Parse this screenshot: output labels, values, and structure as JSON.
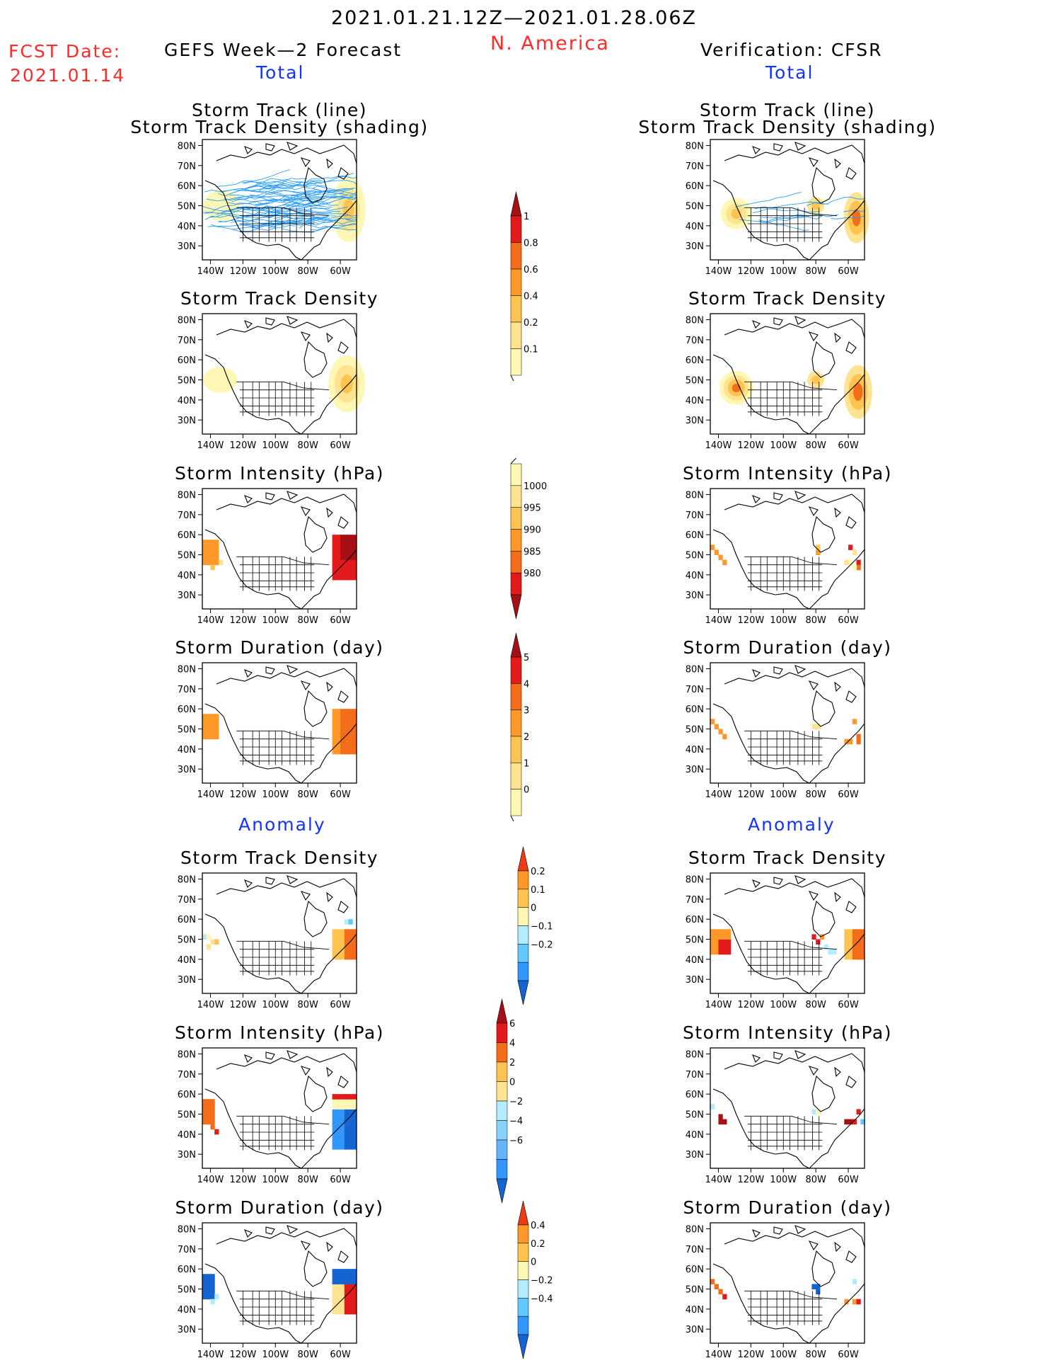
{
  "header": {
    "date_range": "2021.01.21.12Z—2021.01.28.06Z",
    "region": "N. America",
    "fcst_label": "FCST Date:",
    "fcst_date": "2021.01.14",
    "left_title": "GEFS Week—2 Forecast",
    "right_title": "Verification: CFSR",
    "left_section": "Total",
    "right_section": "Total",
    "left_anomaly": "Anomaly",
    "right_anomaly": "Anomaly"
  },
  "colors": {
    "header_red": "#ff2a2a",
    "section_blue": "#1432ff",
    "track_line": "#2a9df4",
    "warm": [
      "#fff7b4",
      "#fee391",
      "#fec44f",
      "#fe9929",
      "#f46d1a",
      "#e31a1c",
      "#a50f15"
    ],
    "cool": [
      "#b3ecff",
      "#64c8ff",
      "#3296fa",
      "#1464d2"
    ]
  },
  "chart_data": [
    {
      "type": "heatmap",
      "panel": "forecast",
      "title": "Storm Track (line)",
      "subtitle": "Storm Track Density (shading)",
      "xlabel": "",
      "ylabel": "",
      "x_ticks": [
        "140W",
        "120W",
        "100W",
        "80W",
        "60W"
      ],
      "y_ticks": [
        "80N",
        "70N",
        "60N",
        "50N",
        "40N",
        "30N"
      ],
      "overlay": "storm track lines (many, blue)",
      "colorbar": "total_density"
    },
    {
      "type": "heatmap",
      "panel": "verification",
      "title": "Storm Track (line)",
      "subtitle": "Storm Track Density (shading)",
      "xlabel": "",
      "ylabel": "",
      "x_ticks": [
        "140W",
        "120W",
        "100W",
        "80W",
        "60W"
      ],
      "y_ticks": [
        "80N",
        "70N",
        "60N",
        "50N",
        "40N",
        "30N"
      ],
      "overlay": "storm track lines (few, blue)",
      "colorbar": "total_density"
    },
    {
      "type": "heatmap",
      "panel": "forecast",
      "title": "Storm Track Density",
      "x_ticks": [
        "140W",
        "120W",
        "100W",
        "80W",
        "60W"
      ],
      "y_ticks": [
        "80N",
        "70N",
        "60N",
        "50N",
        "40N",
        "30N"
      ],
      "colorbar": "total_density"
    },
    {
      "type": "heatmap",
      "panel": "verification",
      "title": "Storm Track Density",
      "x_ticks": [
        "140W",
        "120W",
        "100W",
        "80W",
        "60W"
      ],
      "y_ticks": [
        "80N",
        "70N",
        "60N",
        "50N",
        "40N",
        "30N"
      ],
      "colorbar": "total_density"
    },
    {
      "type": "heatmap",
      "panel": "forecast",
      "title": "Storm Intensity (hPa)",
      "x_ticks": [
        "140W",
        "120W",
        "100W",
        "80W",
        "60W"
      ],
      "y_ticks": [
        "80N",
        "70N",
        "60N",
        "50N",
        "40N",
        "30N"
      ],
      "colorbar": "total_intensity"
    },
    {
      "type": "heatmap",
      "panel": "verification",
      "title": "Storm Intensity (hPa)",
      "x_ticks": [
        "140W",
        "120W",
        "100W",
        "80W",
        "60W"
      ],
      "y_ticks": [
        "80N",
        "70N",
        "60N",
        "50N",
        "40N",
        "30N"
      ],
      "colorbar": "total_intensity"
    },
    {
      "type": "heatmap",
      "panel": "forecast",
      "title": "Storm Duration (day)",
      "x_ticks": [
        "140W",
        "120W",
        "100W",
        "80W",
        "60W"
      ],
      "y_ticks": [
        "80N",
        "70N",
        "60N",
        "50N",
        "40N",
        "30N"
      ],
      "colorbar": "total_duration"
    },
    {
      "type": "heatmap",
      "panel": "verification",
      "title": "Storm Duration (day)",
      "x_ticks": [
        "140W",
        "120W",
        "100W",
        "80W",
        "60W"
      ],
      "y_ticks": [
        "80N",
        "70N",
        "60N",
        "50N",
        "40N",
        "30N"
      ],
      "colorbar": "total_duration"
    },
    {
      "type": "heatmap",
      "panel": "forecast",
      "title": "Storm Track Density",
      "x_ticks": [
        "140W",
        "120W",
        "100W",
        "80W",
        "60W"
      ],
      "y_ticks": [
        "80N",
        "70N",
        "60N",
        "50N",
        "40N",
        "30N"
      ],
      "colorbar": "anom_density"
    },
    {
      "type": "heatmap",
      "panel": "verification",
      "title": "Storm Track Density",
      "x_ticks": [
        "140W",
        "120W",
        "100W",
        "80W",
        "60W"
      ],
      "y_ticks": [
        "80N",
        "70N",
        "60N",
        "50N",
        "40N",
        "30N"
      ],
      "colorbar": "anom_density"
    },
    {
      "type": "heatmap",
      "panel": "forecast",
      "title": "Storm Intensity (hPa)",
      "x_ticks": [
        "140W",
        "120W",
        "100W",
        "80W",
        "60W"
      ],
      "y_ticks": [
        "80N",
        "70N",
        "60N",
        "50N",
        "40N",
        "30N"
      ],
      "colorbar": "anom_intensity"
    },
    {
      "type": "heatmap",
      "panel": "verification",
      "title": "Storm Intensity (hPa)",
      "x_ticks": [
        "140W",
        "120W",
        "100W",
        "80W",
        "60W"
      ],
      "y_ticks": [
        "80N",
        "70N",
        "60N",
        "50N",
        "40N",
        "30N"
      ],
      "colorbar": "anom_intensity"
    },
    {
      "type": "heatmap",
      "panel": "forecast",
      "title": "Storm Duration (day)",
      "x_ticks": [
        "140W",
        "120W",
        "100W",
        "80W",
        "60W"
      ],
      "y_ticks": [
        "80N",
        "70N",
        "60N",
        "50N",
        "40N",
        "30N"
      ],
      "colorbar": "anom_duration"
    },
    {
      "type": "heatmap",
      "panel": "verification",
      "title": "Storm Duration (day)",
      "x_ticks": [
        "140W",
        "120W",
        "100W",
        "80W",
        "60W"
      ],
      "y_ticks": [
        "80N",
        "70N",
        "60N",
        "50N",
        "40N",
        "30N"
      ],
      "colorbar": "anom_duration"
    }
  ],
  "colorbars": {
    "total_density": {
      "labels": [
        "1",
        "0.8",
        "0.6",
        "0.4",
        "0.2",
        "0.1"
      ],
      "colors": [
        "#a50f15",
        "#e31a1c",
        "#f46d1a",
        "#fe9929",
        "#fec44f",
        "#fee391",
        "#fff7b4"
      ],
      "top_arrow": true,
      "bottom_arrow": false
    },
    "total_intensity": {
      "labels": [
        "1000",
        "995",
        "990",
        "985",
        "980"
      ],
      "colors": [
        "#fff7b4",
        "#fee391",
        "#fec44f",
        "#fe9929",
        "#f46d1a",
        "#e31a1c",
        "#a50f15"
      ],
      "top_arrow": false,
      "bottom_arrow": true
    },
    "total_duration": {
      "labels": [
        "5",
        "4",
        "3",
        "2",
        "1",
        "0"
      ],
      "colors": [
        "#a50f15",
        "#e31a1c",
        "#f46d1a",
        "#fe9929",
        "#fec44f",
        "#fee391",
        "#fff7b4"
      ],
      "top_arrow": true,
      "bottom_arrow": false
    },
    "anom_density": {
      "labels": [
        "0.2",
        "0.1",
        "0",
        "−0.1",
        "−0.2"
      ],
      "colors": [
        "#f03c14",
        "#fe9929",
        "#fec44f",
        "#fff7b4",
        "#b3ecff",
        "#64c8ff",
        "#3296fa",
        "#1464d2"
      ],
      "top_arrow": true,
      "bottom_arrow": true
    },
    "anom_intensity": {
      "labels": [
        "6",
        "4",
        "2",
        "0",
        "−2",
        "−4",
        "−6"
      ],
      "colors": [
        "#a50f15",
        "#e31a1c",
        "#f46d1a",
        "#fec44f",
        "#fee391",
        "#b3ecff",
        "#87d2ff",
        "#64b4ff",
        "#3296fa",
        "#1464d2"
      ],
      "top_arrow": true,
      "bottom_arrow": true
    },
    "anom_duration": {
      "labels": [
        "0.4",
        "0.2",
        "0",
        "−0.2",
        "−0.4"
      ],
      "colors": [
        "#f03c14",
        "#fe9929",
        "#fec44f",
        "#fff7b4",
        "#b3ecff",
        "#64c8ff",
        "#3296fa",
        "#1464d2"
      ],
      "top_arrow": true,
      "bottom_arrow": true
    }
  }
}
